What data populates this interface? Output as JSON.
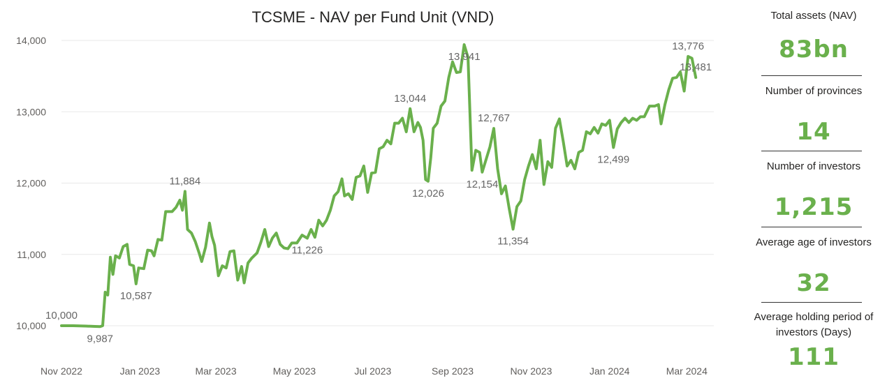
{
  "chart_data": {
    "type": "line",
    "title": "TCSME - NAV per Fund Unit (VND)",
    "xlabel": "",
    "ylabel": "",
    "ylim": [
      10000,
      14000
    ],
    "yticks": [
      "10,000",
      "11,000",
      "12,000",
      "13,000",
      "14,000"
    ],
    "ytick_values": [
      10000,
      11000,
      12000,
      13000,
      14000
    ],
    "xticks": [
      "Nov 2022",
      "Jan 2023",
      "Mar 2023",
      "May 2023",
      "Jul 2023",
      "Sep 2023",
      "Nov 2023",
      "Jan 2024",
      "Mar 2024"
    ],
    "xtick_dates": [
      "2022-11-01",
      "2023-01-01",
      "2023-03-01",
      "2023-05-01",
      "2023-07-01",
      "2023-09-01",
      "2023-11-01",
      "2024-01-01",
      "2024-03-01"
    ],
    "xlim": [
      "2022-11-01",
      "2024-03-22"
    ],
    "grid": true,
    "line_color": "#6ab04c",
    "series": [
      {
        "points": [
          [
            "2022-11-01",
            10000
          ],
          [
            "2022-11-10",
            10000
          ],
          [
            "2022-11-20",
            9995
          ],
          [
            "2022-11-27",
            9990
          ],
          [
            "2022-12-01",
            9987
          ],
          [
            "2022-12-03",
            10000
          ],
          [
            "2022-12-05",
            10470
          ],
          [
            "2022-12-07",
            10430
          ],
          [
            "2022-12-09",
            10960
          ],
          [
            "2022-12-11",
            10720
          ],
          [
            "2022-12-13",
            10980
          ],
          [
            "2022-12-16",
            10950
          ],
          [
            "2022-12-19",
            11110
          ],
          [
            "2022-12-22",
            11140
          ],
          [
            "2022-12-24",
            10860
          ],
          [
            "2022-12-27",
            10840
          ],
          [
            "2022-12-29",
            10587
          ],
          [
            "2022-12-31",
            10810
          ],
          [
            "2023-01-04",
            10800
          ],
          [
            "2023-01-07",
            11060
          ],
          [
            "2023-01-10",
            11050
          ],
          [
            "2023-01-12",
            10980
          ],
          [
            "2023-01-15",
            11210
          ],
          [
            "2023-01-18",
            11200
          ],
          [
            "2023-01-21",
            11600
          ],
          [
            "2023-01-26",
            11600
          ],
          [
            "2023-01-29",
            11660
          ],
          [
            "2023-02-01",
            11760
          ],
          [
            "2023-02-03",
            11620
          ],
          [
            "2023-02-05",
            11884
          ],
          [
            "2023-02-07",
            11350
          ],
          [
            "2023-02-10",
            11300
          ],
          [
            "2023-02-13",
            11180
          ],
          [
            "2023-02-16",
            11020
          ],
          [
            "2023-02-18",
            10900
          ],
          [
            "2023-02-21",
            11100
          ],
          [
            "2023-02-24",
            11440
          ],
          [
            "2023-02-26",
            11250
          ],
          [
            "2023-02-28",
            11130
          ],
          [
            "2023-03-03",
            10700
          ],
          [
            "2023-03-06",
            10840
          ],
          [
            "2023-03-09",
            10810
          ],
          [
            "2023-03-12",
            11040
          ],
          [
            "2023-03-15",
            11050
          ],
          [
            "2023-03-18",
            10640
          ],
          [
            "2023-03-21",
            10830
          ],
          [
            "2023-03-23",
            10600
          ],
          [
            "2023-03-26",
            10880
          ],
          [
            "2023-03-29",
            10950
          ],
          [
            "2023-04-02",
            11020
          ],
          [
            "2023-04-05",
            11170
          ],
          [
            "2023-04-08",
            11350
          ],
          [
            "2023-04-11",
            11110
          ],
          [
            "2023-04-14",
            11230
          ],
          [
            "2023-04-17",
            11300
          ],
          [
            "2023-04-20",
            11140
          ],
          [
            "2023-04-23",
            11090
          ],
          [
            "2023-04-26",
            11080
          ],
          [
            "2023-04-29",
            11160
          ],
          [
            "2023-05-03",
            11160
          ],
          [
            "2023-05-07",
            11270
          ],
          [
            "2023-05-11",
            11226
          ],
          [
            "2023-05-14",
            11350
          ],
          [
            "2023-05-17",
            11240
          ],
          [
            "2023-05-20",
            11480
          ],
          [
            "2023-05-23",
            11400
          ],
          [
            "2023-05-26",
            11480
          ],
          [
            "2023-05-29",
            11620
          ],
          [
            "2023-06-01",
            11820
          ],
          [
            "2023-06-04",
            11880
          ],
          [
            "2023-06-07",
            12060
          ],
          [
            "2023-06-09",
            11820
          ],
          [
            "2023-06-12",
            11850
          ],
          [
            "2023-06-15",
            11770
          ],
          [
            "2023-06-18",
            12080
          ],
          [
            "2023-06-21",
            12100
          ],
          [
            "2023-06-24",
            12240
          ],
          [
            "2023-06-27",
            11870
          ],
          [
            "2023-06-30",
            12140
          ],
          [
            "2023-07-03",
            12150
          ],
          [
            "2023-07-06",
            12480
          ],
          [
            "2023-07-09",
            12510
          ],
          [
            "2023-07-12",
            12600
          ],
          [
            "2023-07-15",
            12550
          ],
          [
            "2023-07-18",
            12840
          ],
          [
            "2023-07-21",
            12840
          ],
          [
            "2023-07-24",
            12910
          ],
          [
            "2023-07-27",
            12720
          ],
          [
            "2023-07-30",
            13044
          ],
          [
            "2023-08-02",
            12720
          ],
          [
            "2023-08-05",
            12850
          ],
          [
            "2023-08-07",
            12780
          ],
          [
            "2023-08-09",
            12600
          ],
          [
            "2023-08-11",
            12050
          ],
          [
            "2023-08-13",
            12026
          ],
          [
            "2023-08-15",
            12350
          ],
          [
            "2023-08-17",
            12770
          ],
          [
            "2023-08-20",
            12840
          ],
          [
            "2023-08-23",
            13080
          ],
          [
            "2023-08-26",
            13150
          ],
          [
            "2023-08-29",
            13480
          ],
          [
            "2023-09-01",
            13700
          ],
          [
            "2023-09-04",
            13550
          ],
          [
            "2023-09-07",
            13560
          ],
          [
            "2023-09-10",
            13941
          ],
          [
            "2023-09-13",
            13760
          ],
          [
            "2023-09-16",
            12180
          ],
          [
            "2023-09-19",
            12460
          ],
          [
            "2023-09-22",
            12430
          ],
          [
            "2023-09-24",
            12154
          ],
          [
            "2023-09-27",
            12330
          ],
          [
            "2023-09-30",
            12510
          ],
          [
            "2023-10-03",
            12767
          ],
          [
            "2023-10-06",
            12200
          ],
          [
            "2023-10-09",
            11850
          ],
          [
            "2023-10-12",
            11960
          ],
          [
            "2023-10-15",
            11640
          ],
          [
            "2023-10-18",
            11354
          ],
          [
            "2023-10-21",
            11670
          ],
          [
            "2023-10-24",
            11750
          ],
          [
            "2023-10-27",
            12050
          ],
          [
            "2023-10-30",
            12240
          ],
          [
            "2023-11-02",
            12400
          ],
          [
            "2023-11-05",
            12200
          ],
          [
            "2023-11-08",
            12600
          ],
          [
            "2023-11-11",
            11980
          ],
          [
            "2023-11-14",
            12300
          ],
          [
            "2023-11-17",
            12220
          ],
          [
            "2023-11-20",
            12770
          ],
          [
            "2023-11-23",
            12900
          ],
          [
            "2023-11-26",
            12580
          ],
          [
            "2023-11-29",
            12240
          ],
          [
            "2023-12-02",
            12320
          ],
          [
            "2023-12-05",
            12200
          ],
          [
            "2023-12-08",
            12430
          ],
          [
            "2023-12-11",
            12460
          ],
          [
            "2023-12-14",
            12720
          ],
          [
            "2023-12-17",
            12690
          ],
          [
            "2023-12-20",
            12780
          ],
          [
            "2023-12-23",
            12700
          ],
          [
            "2023-12-26",
            12830
          ],
          [
            "2023-12-29",
            12810
          ],
          [
            "2024-01-01",
            12880
          ],
          [
            "2024-01-04",
            12499
          ],
          [
            "2024-01-07",
            12760
          ],
          [
            "2024-01-10",
            12850
          ],
          [
            "2024-01-13",
            12910
          ],
          [
            "2024-01-16",
            12850
          ],
          [
            "2024-01-19",
            12910
          ],
          [
            "2024-01-22",
            12880
          ],
          [
            "2024-01-25",
            12930
          ],
          [
            "2024-01-28",
            12930
          ],
          [
            "2024-02-01",
            13080
          ],
          [
            "2024-02-05",
            13080
          ],
          [
            "2024-02-08",
            13100
          ],
          [
            "2024-02-10",
            12830
          ],
          [
            "2024-02-13",
            13100
          ],
          [
            "2024-02-16",
            13310
          ],
          [
            "2024-02-19",
            13470
          ],
          [
            "2024-02-22",
            13481
          ],
          [
            "2024-02-25",
            13560
          ],
          [
            "2024-02-28",
            13290
          ],
          [
            "2024-03-02",
            13776
          ],
          [
            "2024-03-05",
            13750
          ],
          [
            "2024-03-08",
            13481
          ]
        ]
      }
    ],
    "data_labels": [
      {
        "text": "10,000",
        "x": "2022-11-01",
        "y": 10000,
        "pos": "above"
      },
      {
        "text": "9,987",
        "x": "2022-12-01",
        "y": 9987,
        "pos": "below"
      },
      {
        "text": "10,587",
        "x": "2022-12-29",
        "y": 10587,
        "pos": "below"
      },
      {
        "text": "11,884",
        "x": "2023-02-05",
        "y": 11884,
        "pos": "above"
      },
      {
        "text": "11,226",
        "x": "2023-05-11",
        "y": 11226,
        "pos": "below"
      },
      {
        "text": "13,044",
        "x": "2023-07-30",
        "y": 13044,
        "pos": "above"
      },
      {
        "text": "12,026",
        "x": "2023-08-13",
        "y": 12026,
        "pos": "below"
      },
      {
        "text": "13,941",
        "x": "2023-09-10",
        "y": 13941,
        "pos": "below"
      },
      {
        "text": "12,154",
        "x": "2023-09-24",
        "y": 12154,
        "pos": "below"
      },
      {
        "text": "12,767",
        "x": "2023-10-03",
        "y": 12767,
        "pos": "above"
      },
      {
        "text": "11,354",
        "x": "2023-10-18",
        "y": 11354,
        "pos": "below"
      },
      {
        "text": "12,499",
        "x": "2024-01-04",
        "y": 12499,
        "pos": "below"
      },
      {
        "text": "13,481",
        "x": "2024-03-08",
        "y": 13481,
        "pos": "above"
      },
      {
        "text": "13,776",
        "x": "2024-03-02",
        "y": 13776,
        "pos": "above"
      }
    ]
  },
  "kpis": [
    {
      "label": "Total assets (NAV)",
      "value": "83bn"
    },
    {
      "label": "Number of provinces",
      "value": "14"
    },
    {
      "label": "Number of investors",
      "value": "1,215"
    },
    {
      "label": "Average age of investors",
      "value": "32"
    },
    {
      "label": "Average holding period of investors (Days)",
      "value": "111"
    }
  ]
}
